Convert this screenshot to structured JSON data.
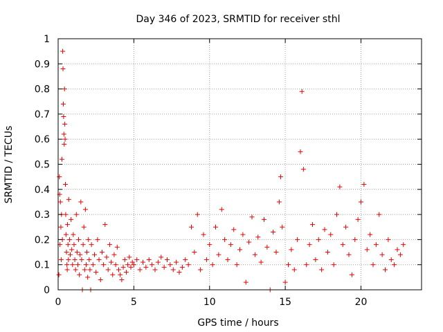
{
  "chart_data": {
    "type": "scatter",
    "title": "Day 346 of 2023, SRMTID for receiver sthl",
    "xlabel": "GPS time / hours",
    "ylabel": "SRMTID / TECUs",
    "xlim": [
      0,
      24
    ],
    "ylim": [
      0,
      1
    ],
    "xticks": [
      0,
      5,
      10,
      15,
      20
    ],
    "xtick_labels": [
      "0",
      "5",
      "10",
      "15",
      "20"
    ],
    "yticks": [
      0,
      0.1,
      0.2,
      0.3,
      0.4,
      0.5,
      0.6,
      0.7,
      0.8,
      0.9,
      1
    ],
    "ytick_labels": [
      "0",
      "0.1",
      "0.2",
      "0.3",
      "0.4",
      "0.5",
      "0.6",
      "0.7",
      "0.8",
      "0.9",
      "1"
    ],
    "grid": true,
    "marker": "+",
    "color": "#e60000",
    "series": [
      {
        "name": "SRMTID",
        "points": [
          [
            0.05,
            0.06
          ],
          [
            0.08,
            0.45
          ],
          [
            0.1,
            0.38
          ],
          [
            0.12,
            0.18
          ],
          [
            0.15,
            0.35
          ],
          [
            0.18,
            0.25
          ],
          [
            0.2,
            0.12
          ],
          [
            0.22,
            0.3
          ],
          [
            0.25,
            0.52
          ],
          [
            0.28,
            0.2
          ],
          [
            0.3,
            0.95
          ],
          [
            0.32,
            0.88
          ],
          [
            0.34,
            0.74
          ],
          [
            0.36,
            0.69
          ],
          [
            0.38,
            0.62
          ],
          [
            0.4,
            0.58
          ],
          [
            0.42,
            0.8
          ],
          [
            0.44,
            0.66
          ],
          [
            0.46,
            0.6
          ],
          [
            0.48,
            0.42
          ],
          [
            0.5,
            0.3
          ],
          [
            0.52,
            0.22
          ],
          [
            0.55,
            0.15
          ],
          [
            0.58,
            0.1
          ],
          [
            0.6,
            0.08
          ],
          [
            0.62,
            0.26
          ],
          [
            0.65,
            0.18
          ],
          [
            0.68,
            0.12
          ],
          [
            0.7,
            0.36
          ],
          [
            0.75,
            0.2
          ],
          [
            0.8,
            0.14
          ],
          [
            0.85,
            0.28
          ],
          [
            0.9,
            0.16
          ],
          [
            0.95,
            0.1
          ],
          [
            1.0,
            0.22
          ],
          [
            1.05,
            0.18
          ],
          [
            1.1,
            0.12
          ],
          [
            1.15,
            0.08
          ],
          [
            1.2,
            0.3
          ],
          [
            1.25,
            0.15
          ],
          [
            1.3,
            0.1
          ],
          [
            1.35,
            0.2
          ],
          [
            1.4,
            0.06
          ],
          [
            1.45,
            0.14
          ],
          [
            1.5,
            0.35
          ],
          [
            1.55,
            0.12
          ],
          [
            1.6,
            0.0
          ],
          [
            1.65,
            0.18
          ],
          [
            1.7,
            0.25
          ],
          [
            1.75,
            0.08
          ],
          [
            1.8,
            0.32
          ],
          [
            1.85,
            0.1
          ],
          [
            1.9,
            0.15
          ],
          [
            1.95,
            0.05
          ],
          [
            2.0,
            0.2
          ],
          [
            2.05,
            0.12
          ],
          [
            2.1,
            0.08
          ],
          [
            2.15,
            0.0
          ],
          [
            2.2,
            0.18
          ],
          [
            2.3,
            0.1
          ],
          [
            2.4,
            0.14
          ],
          [
            2.5,
            0.07
          ],
          [
            2.6,
            0.2
          ],
          [
            2.7,
            0.12
          ],
          [
            2.8,
            0.04
          ],
          [
            2.9,
            0.15
          ],
          [
            3.0,
            0.1
          ],
          [
            3.1,
            0.26
          ],
          [
            3.2,
            0.13
          ],
          [
            3.3,
            0.08
          ],
          [
            3.4,
            0.18
          ],
          [
            3.5,
            0.11
          ],
          [
            3.6,
            0.06
          ],
          [
            3.7,
            0.14
          ],
          [
            3.8,
            0.1
          ],
          [
            3.9,
            0.17
          ],
          [
            4.0,
            0.08
          ],
          [
            4.1,
            0.06
          ],
          [
            4.2,
            0.04
          ],
          [
            4.3,
            0.09
          ],
          [
            4.4,
            0.12
          ],
          [
            4.5,
            0.07
          ],
          [
            4.6,
            0.1
          ],
          [
            4.7,
            0.13
          ],
          [
            4.8,
            0.09
          ],
          [
            4.9,
            0.11
          ],
          [
            5.0,
            0.1
          ],
          [
            5.2,
            0.12
          ],
          [
            5.4,
            0.08
          ],
          [
            5.6,
            0.11
          ],
          [
            5.8,
            0.09
          ],
          [
            6.0,
            0.12
          ],
          [
            6.2,
            0.1
          ],
          [
            6.4,
            0.08
          ],
          [
            6.6,
            0.11
          ],
          [
            6.8,
            0.13
          ],
          [
            7.0,
            0.09
          ],
          [
            7.2,
            0.12
          ],
          [
            7.4,
            0.1
          ],
          [
            7.6,
            0.08
          ],
          [
            7.8,
            0.11
          ],
          [
            8.0,
            0.07
          ],
          [
            8.2,
            0.09
          ],
          [
            8.4,
            0.12
          ],
          [
            8.6,
            0.1
          ],
          [
            8.8,
            0.25
          ],
          [
            9.0,
            0.15
          ],
          [
            9.2,
            0.3
          ],
          [
            9.4,
            0.08
          ],
          [
            9.6,
            0.22
          ],
          [
            9.8,
            0.12
          ],
          [
            10.0,
            0.18
          ],
          [
            10.2,
            0.1
          ],
          [
            10.4,
            0.25
          ],
          [
            10.6,
            0.14
          ],
          [
            10.8,
            0.32
          ],
          [
            11.0,
            0.2
          ],
          [
            11.2,
            0.12
          ],
          [
            11.4,
            0.18
          ],
          [
            11.6,
            0.24
          ],
          [
            11.8,
            0.1
          ],
          [
            12.0,
            0.16
          ],
          [
            12.2,
            0.22
          ],
          [
            12.4,
            0.03
          ],
          [
            12.6,
            0.19
          ],
          [
            12.8,
            0.29
          ],
          [
            13.0,
            0.14
          ],
          [
            13.2,
            0.21
          ],
          [
            13.4,
            0.11
          ],
          [
            13.6,
            0.28
          ],
          [
            13.8,
            0.17
          ],
          [
            14.0,
            0.0
          ],
          [
            14.2,
            0.23
          ],
          [
            14.4,
            0.15
          ],
          [
            14.6,
            0.35
          ],
          [
            14.7,
            0.45
          ],
          [
            14.8,
            0.25
          ],
          [
            15.0,
            0.03
          ],
          [
            15.2,
            0.1
          ],
          [
            15.4,
            0.16
          ],
          [
            15.6,
            0.08
          ],
          [
            15.8,
            0.2
          ],
          [
            16.0,
            0.55
          ],
          [
            16.1,
            0.79
          ],
          [
            16.2,
            0.48
          ],
          [
            16.4,
            0.1
          ],
          [
            16.6,
            0.18
          ],
          [
            16.8,
            0.26
          ],
          [
            17.0,
            0.12
          ],
          [
            17.2,
            0.2
          ],
          [
            17.4,
            0.08
          ],
          [
            17.6,
            0.24
          ],
          [
            17.8,
            0.15
          ],
          [
            18.0,
            0.22
          ],
          [
            18.2,
            0.1
          ],
          [
            18.4,
            0.3
          ],
          [
            18.6,
            0.41
          ],
          [
            18.8,
            0.18
          ],
          [
            19.0,
            0.25
          ],
          [
            19.2,
            0.14
          ],
          [
            19.4,
            0.06
          ],
          [
            19.6,
            0.2
          ],
          [
            19.8,
            0.28
          ],
          [
            20.0,
            0.35
          ],
          [
            20.2,
            0.42
          ],
          [
            20.4,
            0.16
          ],
          [
            20.6,
            0.22
          ],
          [
            20.8,
            0.1
          ],
          [
            21.0,
            0.18
          ],
          [
            21.2,
            0.3
          ],
          [
            21.4,
            0.14
          ],
          [
            21.6,
            0.08
          ],
          [
            21.8,
            0.2
          ],
          [
            22.0,
            0.12
          ],
          [
            22.2,
            0.1
          ],
          [
            22.4,
            0.16
          ],
          [
            22.6,
            0.14
          ],
          [
            22.8,
            0.18
          ]
        ]
      }
    ]
  }
}
